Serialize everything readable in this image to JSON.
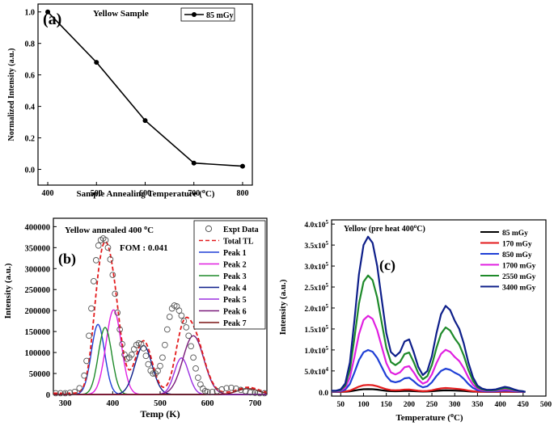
{
  "chart_data": [
    {
      "id": "a",
      "type": "line",
      "panel_label": "(a)",
      "title": "Yellow Sample",
      "xlabel": "Sample Annealing Temperature (",
      "xlabel_sup": "o",
      "xlabel_end": "C)",
      "ylabel": "Normalized Intensity (a.u.)",
      "xlim": [
        380,
        820
      ],
      "ylim": [
        -0.1,
        1.05
      ],
      "xticks": [
        400,
        500,
        600,
        700,
        800
      ],
      "xtick_labels": [
        "400",
        "500",
        "600",
        "700",
        "800"
      ],
      "yticks": [
        0.0,
        0.2,
        0.4,
        0.6,
        0.8,
        1.0
      ],
      "ytick_labels": [
        "0.0",
        "0.2",
        "0.4",
        "0.6",
        "0.8",
        "1.0"
      ],
      "series": [
        {
          "name": "85 mGy",
          "color": "#000000",
          "x": [
            400,
            500,
            600,
            700,
            800
          ],
          "values": [
            1.0,
            0.68,
            0.31,
            0.04,
            0.02
          ]
        }
      ],
      "legend": [
        "85 mGy"
      ]
    },
    {
      "id": "b",
      "type": "line",
      "panel_label": "(b)",
      "title_main": "Yellow annealed 400 ",
      "title_sup": "o",
      "title_end": "C",
      "annotation": "FOM : 0.041",
      "xlabel": "Temp (K)",
      "ylabel": "Intensity (a.u.)",
      "xlim": [
        275,
        725
      ],
      "ylim": [
        0,
        420000
      ],
      "xticks": [
        300,
        400,
        500,
        600,
        700
      ],
      "xtick_labels": [
        "300",
        "400",
        "500",
        "600",
        "700"
      ],
      "yticks": [
        0,
        50000,
        100000,
        150000,
        200000,
        250000,
        300000,
        350000,
        400000
      ],
      "ytick_labels": [
        "0",
        "50000",
        "100000",
        "150000",
        "200000",
        "250000",
        "300000",
        "350000",
        "400000"
      ],
      "expt_data": {
        "name": "Expt Data",
        "x": [
          280,
          290,
          300,
          310,
          320,
          330,
          340,
          345,
          350,
          355,
          360,
          365,
          370,
          375,
          380,
          385,
          390,
          395,
          400,
          405,
          410,
          415,
          420,
          425,
          430,
          435,
          440,
          445,
          450,
          455,
          460,
          465,
          470,
          475,
          480,
          485,
          490,
          495,
          500,
          505,
          510,
          515,
          520,
          525,
          530,
          535,
          540,
          545,
          550,
          555,
          560,
          565,
          570,
          575,
          580,
          585,
          590,
          595,
          600,
          610,
          620,
          630,
          640,
          650,
          660,
          670,
          680,
          690,
          700,
          710,
          720
        ],
        "values": [
          3000,
          3000,
          3000,
          4000,
          6000,
          15000,
          45000,
          80000,
          140000,
          205000,
          270000,
          320000,
          355000,
          368000,
          372000,
          368000,
          350000,
          322000,
          285000,
          240000,
          195000,
          155000,
          120000,
          95000,
          85000,
          88000,
          95000,
          108000,
          118000,
          122000,
          120000,
          110000,
          92000,
          72000,
          57000,
          50000,
          50000,
          56000,
          68000,
          88000,
          118000,
          155000,
          185000,
          205000,
          212000,
          210000,
          200000,
          188000,
          175000,
          160000,
          140000,
          115000,
          88000,
          62000,
          40000,
          24000,
          14000,
          8000,
          6000,
          6000,
          8000,
          12000,
          15000,
          16000,
          14000,
          11000,
          8000,
          5000,
          4000,
          3000,
          3000
        ]
      },
      "series": [
        {
          "name": "Total TL",
          "color": "#e31a1c",
          "dash": true,
          "peaks": [
            [
              369,
              167000,
              14
            ],
            [
              384,
              160000,
              14
            ],
            [
              402,
              202000,
              16
            ],
            [
              465,
              117000,
              18
            ],
            [
              465,
              8000,
              18
            ],
            [
              545,
              87000,
              15
            ],
            [
              570,
              140000,
              22
            ],
            [
              685,
              14000,
              22
            ]
          ]
        },
        {
          "name": "Peak 1",
          "color": "#1f3fd6",
          "peaks": [
            [
              369,
              167000,
              14
            ]
          ]
        },
        {
          "name": "Peak 2",
          "color": "#e01fe0",
          "peaks": [
            [
              402,
              202000,
              16
            ]
          ]
        },
        {
          "name": "Peak 3",
          "color": "#1e8a2a",
          "peaks": [
            [
              384,
              160000,
              14
            ]
          ]
        },
        {
          "name": "Peak 4",
          "color": "#0e1f8a",
          "peaks": [
            [
              465,
              117000,
              18
            ]
          ]
        },
        {
          "name": "Peak 5",
          "color": "#9b30e0",
          "peaks": [
            [
              545,
              87000,
              15
            ]
          ]
        },
        {
          "name": "Peak 6",
          "color": "#7a1a7a",
          "peaks": [
            [
              570,
              140000,
              22
            ]
          ]
        },
        {
          "name": "Peak 7",
          "color": "#7a1414",
          "peaks": [
            [
              685,
              14000,
              22
            ]
          ]
        }
      ],
      "legend": [
        "Expt Data",
        "Total TL",
        "Peak 1",
        "Peak 2",
        "Peak 3",
        "Peak 4",
        "Peak 5",
        "Peak 6",
        "Peak 7"
      ]
    },
    {
      "id": "c",
      "type": "line",
      "panel_label": "(c)",
      "title_main": "Yellow (pre heat 400",
      "title_sup": "o",
      "title_end": "C)",
      "xlabel": "Temperature (",
      "xlabel_sup": "o",
      "xlabel_end": "C)",
      "ylabel": "Intensity (a.u.)",
      "xlim": [
        30,
        500
      ],
      "ylim": [
        -10000,
        410000
      ],
      "xticks": [
        50,
        100,
        150,
        200,
        250,
        300,
        350,
        400,
        450,
        500
      ],
      "xtick_labels": [
        "50",
        "100",
        "150",
        "200",
        "250",
        "300",
        "350",
        "400",
        "450",
        "500"
      ],
      "yticks": [
        0,
        50000,
        100000,
        150000,
        200000,
        250000,
        300000,
        350000,
        400000
      ],
      "ytick_base": [
        "0.0",
        "5.0x10",
        "1.0x10",
        "1.5x10",
        "2.0x10",
        "2.5x10",
        "3.0x10",
        "3.5x10",
        "4.0x10"
      ],
      "ytick_exp": [
        "",
        "4",
        "5",
        "5",
        "5",
        "5",
        "5",
        "5",
        "5"
      ],
      "series": [
        {
          "name": "85 mGy",
          "color": "#000000",
          "scale": 0.018
        },
        {
          "name": "170 mGy",
          "color": "#e31a1c",
          "scale": 0.045
        },
        {
          "name": "850 mGy",
          "color": "#1f3fd6",
          "scale": 0.27
        },
        {
          "name": "1700 mGy",
          "color": "#e01fe0",
          "scale": 0.49
        },
        {
          "name": "2550 mGy",
          "color": "#1e8a2a",
          "scale": 0.75
        },
        {
          "name": "3400 mGy",
          "color": "#0e1f8a",
          "scale": 1.0
        }
      ],
      "base_curve": {
        "x": [
          30,
          40,
          50,
          60,
          70,
          80,
          90,
          100,
          110,
          120,
          130,
          140,
          150,
          160,
          170,
          180,
          190,
          200,
          210,
          220,
          230,
          240,
          250,
          260,
          270,
          280,
          290,
          300,
          310,
          320,
          330,
          340,
          350,
          360,
          370,
          380,
          390,
          400,
          410,
          420,
          430,
          440,
          450,
          455
        ],
        "values": [
          3000,
          3000,
          6000,
          20000,
          70000,
          170000,
          280000,
          350000,
          370000,
          355000,
          300000,
          220000,
          140000,
          95000,
          85000,
          95000,
          120000,
          125000,
          95000,
          60000,
          40000,
          50000,
          85000,
          140000,
          185000,
          205000,
          195000,
          170000,
          150000,
          115000,
          70000,
          35000,
          15000,
          8000,
          5000,
          5000,
          6000,
          9000,
          12000,
          10000,
          6000,
          3000,
          1500,
          0
        ]
      },
      "legend": [
        "85 mGy",
        "170 mGy",
        "850 mGy",
        "1700 mGy",
        "2550 mGy",
        "3400 mGy"
      ]
    }
  ]
}
